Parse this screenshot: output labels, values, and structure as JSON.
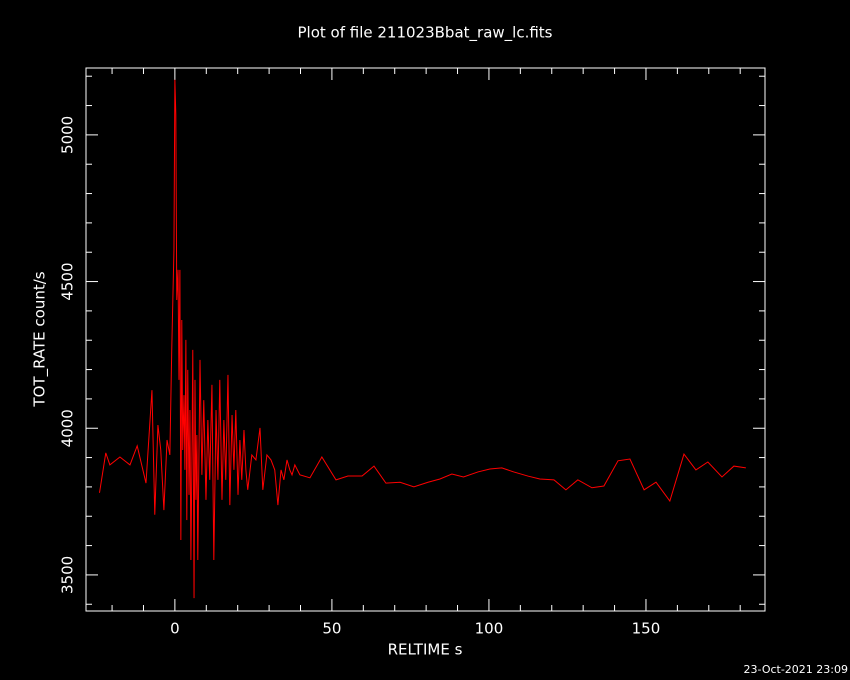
{
  "chart_data": {
    "type": "line",
    "title": "Plot of file 211023Bbat_raw_lc.fits",
    "xlabel": "RELTIME  s",
    "ylabel": "TOT_RATE  count/s",
    "footer": "23-Oct-2021 23:09",
    "color": "#ff0000",
    "xlim": [
      -28.3,
      187.9
    ],
    "ylim": [
      3377,
      5228
    ],
    "xticks": [
      0,
      50,
      100,
      150
    ],
    "yticks": [
      3500,
      4000,
      4500,
      5000
    ],
    "xminorticks": [
      -20,
      -10,
      10,
      20,
      30,
      40,
      60,
      70,
      80,
      90,
      110,
      120,
      130,
      140,
      160,
      170,
      180
    ],
    "yminorticks": [
      3400,
      3600,
      3700,
      3800,
      3900,
      4100,
      4200,
      4300,
      4400,
      4600,
      4700,
      4800,
      4900,
      5100,
      5200
    ],
    "x": [
      -24,
      -22,
      -20.7,
      -17.5,
      -14.3,
      -12,
      -9.2,
      -7.3,
      -6.4,
      -5.4,
      -4.5,
      -3.5,
      -2.5,
      -1.6,
      -1,
      -0.3,
      0,
      0.3,
      0.6,
      1,
      1.3,
      1.6,
      1.9,
      2.2,
      2.5,
      2.9,
      3.2,
      3.5,
      3.8,
      4.1,
      4.5,
      4.8,
      5.1,
      5.4,
      5.7,
      6.1,
      6.4,
      6.7,
      7,
      7.3,
      8,
      8.6,
      9.2,
      9.9,
      10.5,
      11.1,
      11.8,
      12.4,
      13.1,
      13.7,
      14.3,
      15,
      15.6,
      16.2,
      16.9,
      17.5,
      18.2,
      18.8,
      19.4,
      20.1,
      20.7,
      21.3,
      22,
      22.6,
      23.2,
      24.5,
      25.8,
      27.1,
      28,
      29.3,
      30.6,
      31.8,
      32.8,
      33.8,
      34.7,
      35.7,
      36.6,
      37.3,
      38.2,
      39.8,
      43,
      46.8,
      51.3,
      55.1,
      59.6,
      63.4,
      67.2,
      71.7,
      76.1,
      80.6,
      84.4,
      88.2,
      91.9,
      96.5,
      100.3,
      104.1,
      107.9,
      112.4,
      116.2,
      120.7,
      124.5,
      128.3,
      132.8,
      136.6,
      141.1,
      144.9,
      149.4,
      153.2,
      157.6,
      162.1,
      165.9,
      169.7,
      174.2,
      178,
      181.8
    ],
    "values": [
      3780,
      3916,
      3875,
      3902,
      3875,
      3940,
      3813,
      4130,
      3705,
      4011,
      3926,
      3721,
      3960,
      3909,
      4267,
      4608,
      5188,
      5068,
      4437,
      4540,
      4165,
      4540,
      3619,
      4369,
      3926,
      4113,
      3858,
      4301,
      3687,
      4199,
      3773,
      4062,
      3551,
      3858,
      4267,
      3421,
      4165,
      3756,
      3977,
      3551,
      4233,
      3841,
      4096,
      3756,
      4028,
      3824,
      4148,
      3551,
      4062,
      3824,
      4165,
      3756,
      4028,
      3824,
      4182,
      3738,
      4045,
      3858,
      4062,
      3773,
      3960,
      3824,
      3994,
      3858,
      3790,
      3909,
      3892,
      4001,
      3790,
      3909,
      3892,
      3858,
      3738,
      3858,
      3824,
      3892,
      3858,
      3841,
      3875,
      3841,
      3831,
      3902,
      3824,
      3837,
      3837,
      3871,
      3813,
      3816,
      3800,
      3816,
      3827,
      3844,
      3834,
      3851,
      3861,
      3865,
      3851,
      3837,
      3827,
      3824,
      3790,
      3824,
      3797,
      3803,
      3889,
      3895,
      3790,
      3816,
      3752,
      3912,
      3858,
      3885,
      3834,
      3871,
      3865
    ]
  }
}
